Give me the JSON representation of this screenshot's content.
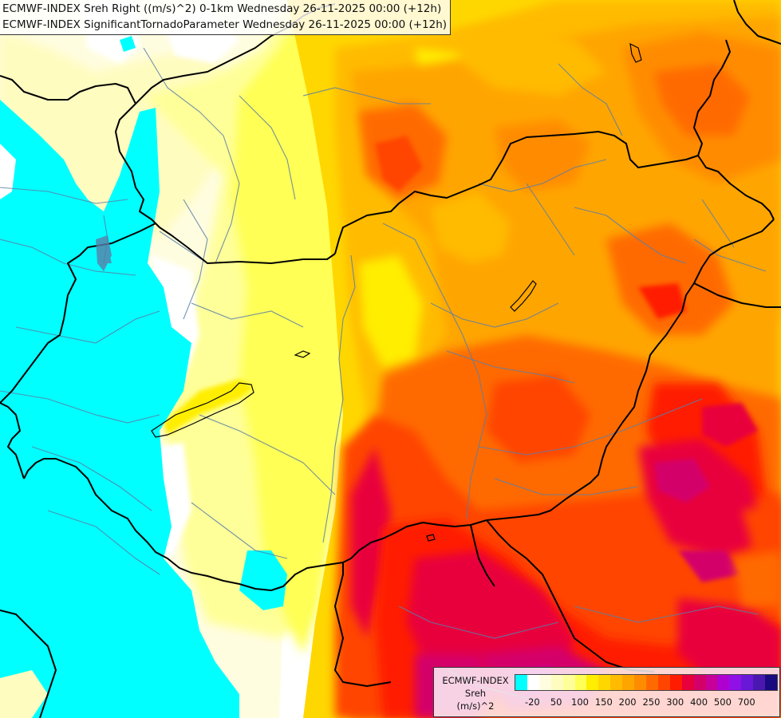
{
  "title": {
    "line1": "ECMWF-INDEX Sreh Right ((m/s)^2) 0-1km Wednesday 26-11-2025 00:00 (+12h)",
    "line2": "ECMWF-INDEX SignificantTornadoParameter Wednesday 26-11-2025 00:00 (+12h)"
  },
  "legend": {
    "line1": "ECMWF-INDEX",
    "line2": "Sreh",
    "line3": "(m/s)^2",
    "colors": [
      "#00ffff",
      "#ffffff",
      "#fffde0",
      "#fffcc0",
      "#ffff99",
      "#ffff55",
      "#ffee00",
      "#ffd700",
      "#ffbb00",
      "#ffa500",
      "#ff8c00",
      "#ff6a00",
      "#ff4500",
      "#ff1c00",
      "#e8003c",
      "#d4006a",
      "#c8009a",
      "#b000d0",
      "#9010e8",
      "#6a18d8",
      "#4a18b0",
      "#1a0a80"
    ],
    "ticks": [
      "-20",
      "50",
      "100",
      "150",
      "200",
      "250",
      "300",
      "400",
      "500",
      "700"
    ]
  },
  "map": {
    "shading": "Sreh Right 0-1km",
    "colors": {
      "background": "#ffffff",
      "cyan": "#00ffff",
      "border": "#000000",
      "river": "#5a7fa8"
    }
  }
}
